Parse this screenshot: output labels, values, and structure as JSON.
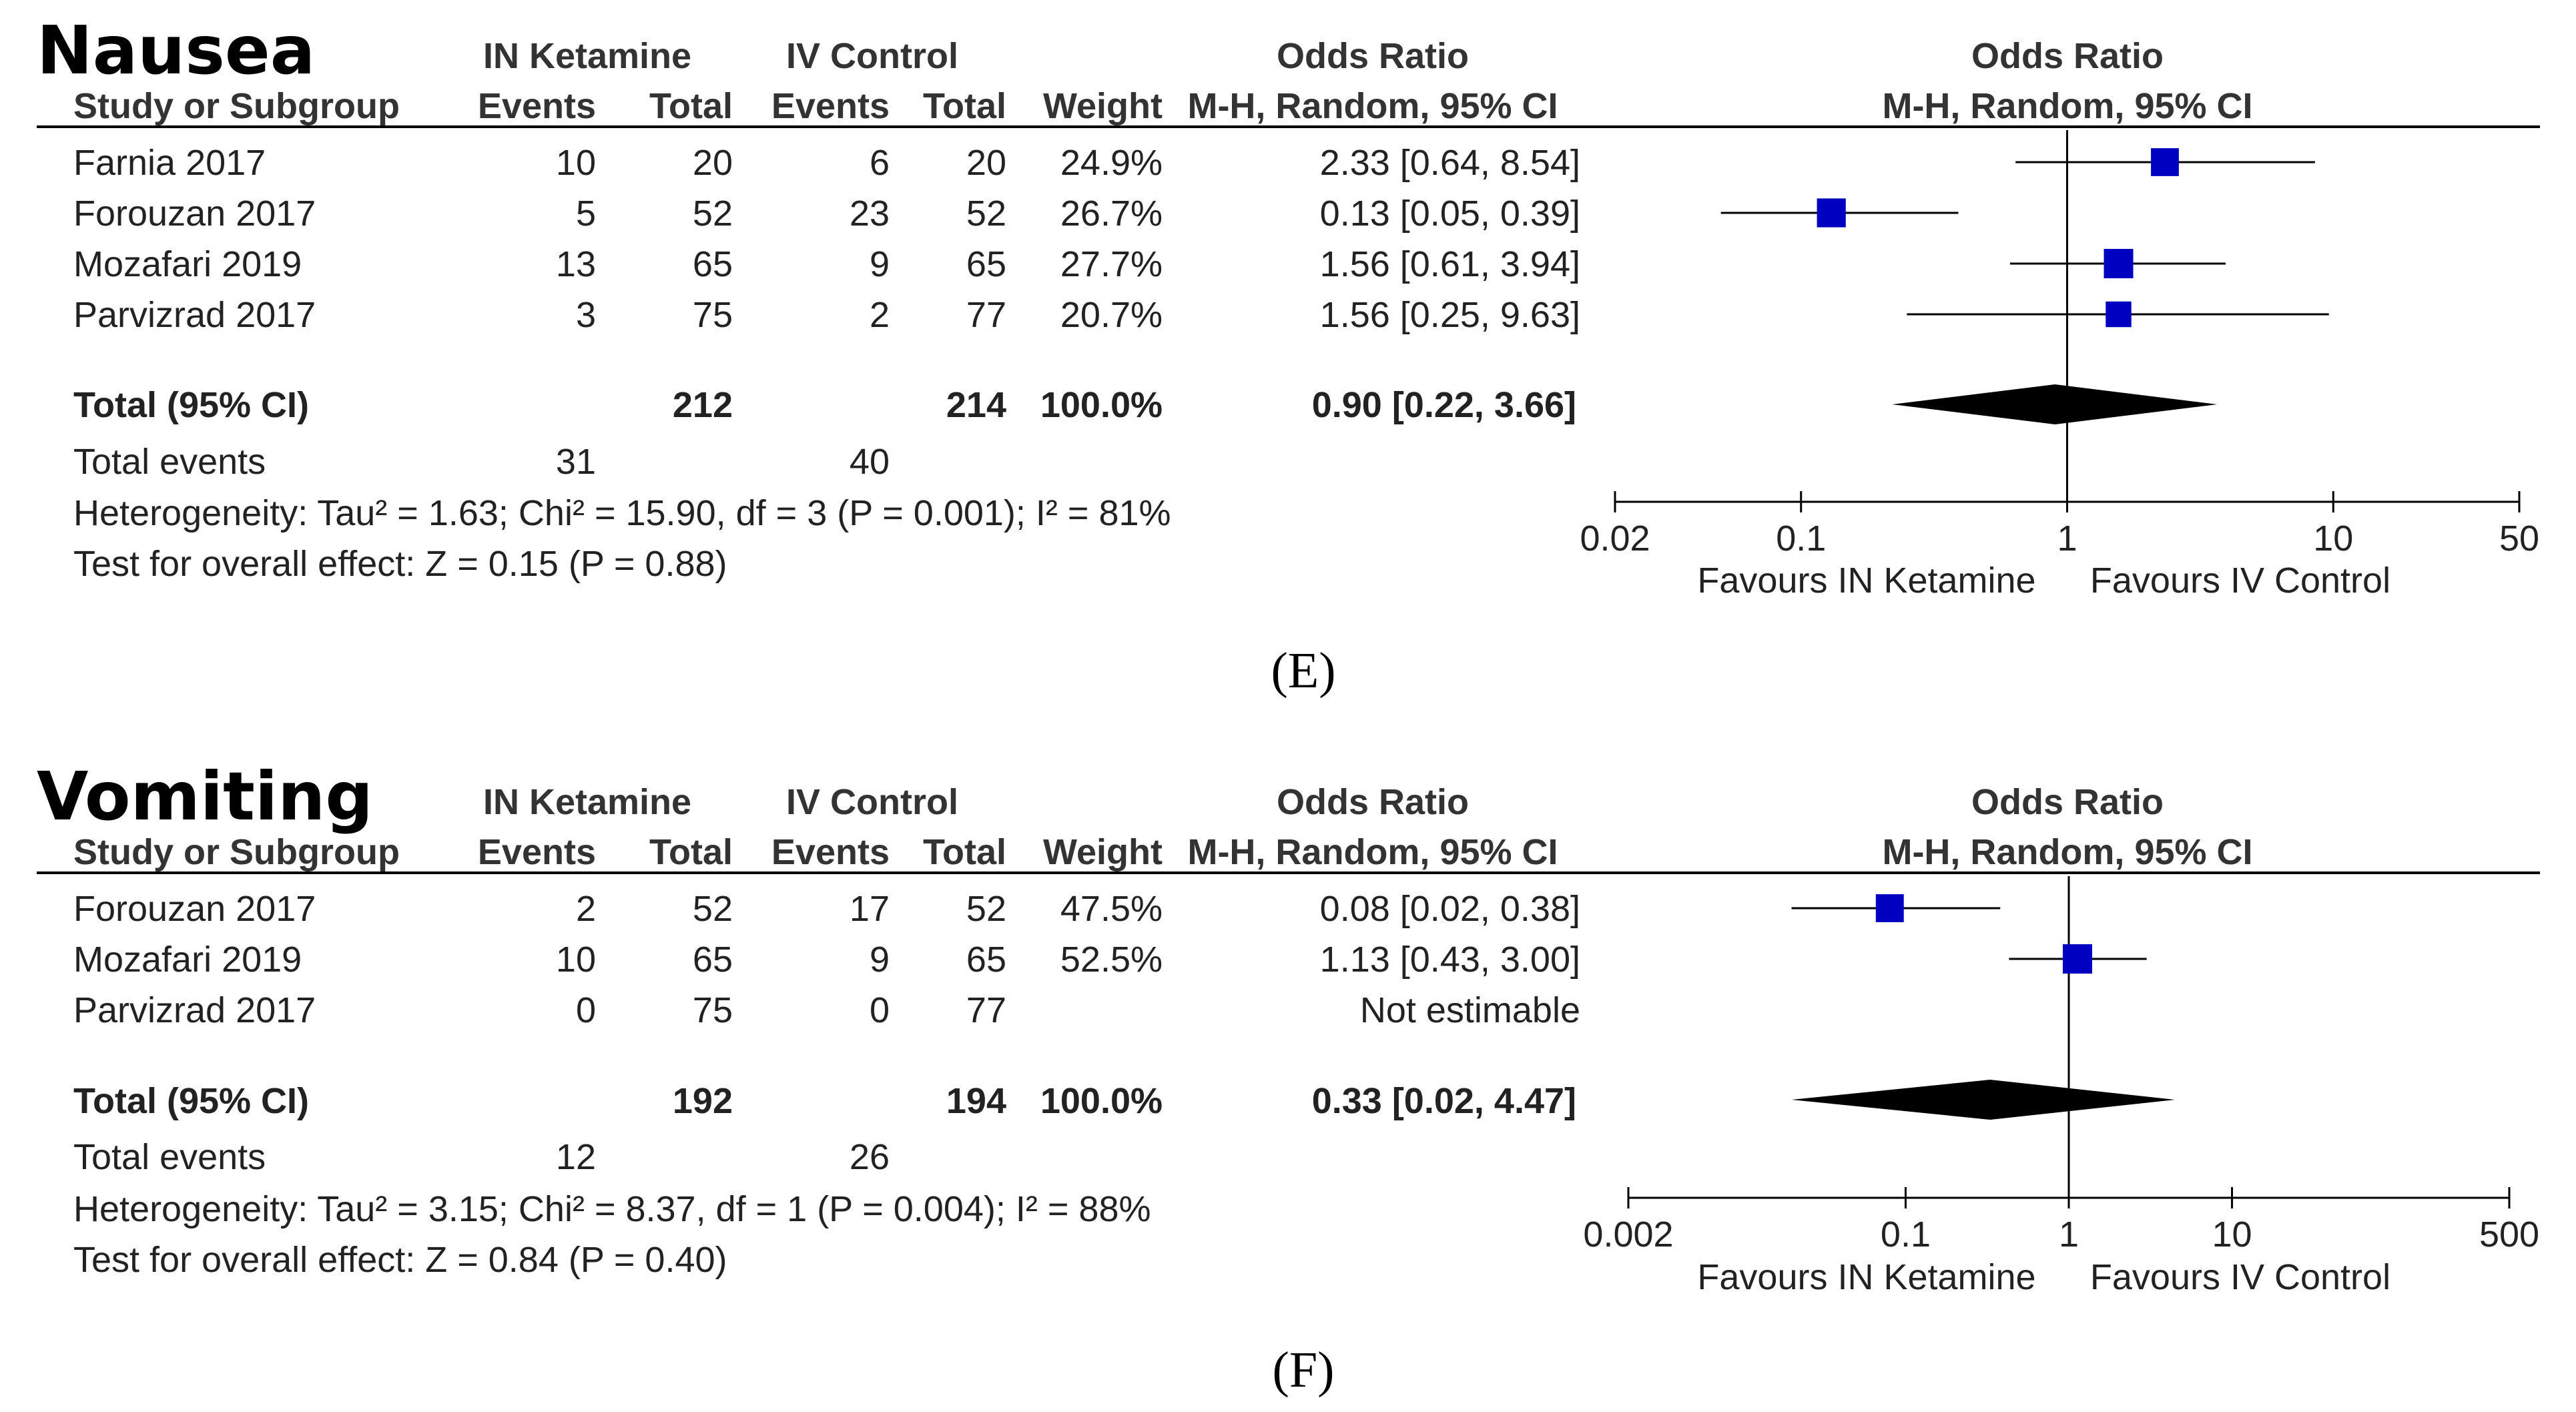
{
  "headers": {
    "group_exp": "IN Ketamine",
    "group_ctl": "IV Control",
    "study": "Study or Subgroup",
    "events": "Events",
    "total": "Total",
    "weight": "Weight",
    "or_title": "Odds Ratio",
    "or_method": "M-H, Random, 95% CI"
  },
  "colors": {
    "box": "#0000c0",
    "diamond": "#000000",
    "line": "#000000"
  },
  "chart_data": [
    {
      "type": "table",
      "title": "Nausea",
      "panel_label": "(E)",
      "rows": [
        {
          "study": "Farnia 2017",
          "exp_events": "10",
          "exp_total": "20",
          "ctl_events": "6",
          "ctl_total": "20",
          "weight": "24.9%",
          "ci_text": "2.33 [0.64, 8.54]",
          "or": 2.33,
          "lo": 0.64,
          "hi": 8.54,
          "w": 24.9
        },
        {
          "study": "Forouzan 2017",
          "exp_events": "5",
          "exp_total": "52",
          "ctl_events": "23",
          "ctl_total": "52",
          "weight": "26.7%",
          "ci_text": "0.13 [0.05, 0.39]",
          "or": 0.13,
          "lo": 0.05,
          "hi": 0.39,
          "w": 26.7
        },
        {
          "study": "Mozafari 2019",
          "exp_events": "13",
          "exp_total": "65",
          "ctl_events": "9",
          "ctl_total": "65",
          "weight": "27.7%",
          "ci_text": "1.56 [0.61, 3.94]",
          "or": 1.56,
          "lo": 0.61,
          "hi": 3.94,
          "w": 27.7
        },
        {
          "study": "Parvizrad 2017",
          "exp_events": "3",
          "exp_total": "75",
          "ctl_events": "2",
          "ctl_total": "77",
          "weight": "20.7%",
          "ci_text": "1.56 [0.25, 9.63]",
          "or": 1.56,
          "lo": 0.25,
          "hi": 9.63,
          "w": 20.7
        }
      ],
      "total": {
        "label": "Total (95% CI)",
        "exp_total": "212",
        "ctl_total": "214",
        "weight": "100.0%",
        "ci_text": "0.90 [0.22, 3.66]",
        "or": 0.9,
        "lo": 0.22,
        "hi": 3.66
      },
      "events": {
        "label": "Total events",
        "exp": "31",
        "ctl": "40"
      },
      "heterogeneity": "Heterogeneity: Tau² = 1.63; Chi² = 15.90, df = 3 (P = 0.001); I² = 81%",
      "overall": "Test for overall effect: Z = 0.15 (P = 0.88)",
      "axis": {
        "scale": "log",
        "range": [
          0.02,
          50
        ],
        "ticks": [
          0.02,
          0.1,
          1,
          10,
          50
        ],
        "tick_labels": [
          "0.02",
          "0.1",
          "1",
          "10",
          "50"
        ]
      },
      "favours_left": "Favours IN Ketamine",
      "favours_right": "Favours IV Control"
    },
    {
      "type": "table",
      "title": "Vomiting",
      "panel_label": "(F)",
      "rows": [
        {
          "study": "Forouzan 2017",
          "exp_events": "2",
          "exp_total": "52",
          "ctl_events": "17",
          "ctl_total": "52",
          "weight": "47.5%",
          "ci_text": "0.08 [0.02, 0.38]",
          "or": 0.08,
          "lo": 0.02,
          "hi": 0.38,
          "w": 47.5
        },
        {
          "study": "Mozafari 2019",
          "exp_events": "10",
          "exp_total": "65",
          "ctl_events": "9",
          "ctl_total": "65",
          "weight": "52.5%",
          "ci_text": "1.13 [0.43, 3.00]",
          "or": 1.13,
          "lo": 0.43,
          "hi": 3.0,
          "w": 52.5
        },
        {
          "study": "Parvizrad 2017",
          "exp_events": "0",
          "exp_total": "75",
          "ctl_events": "0",
          "ctl_total": "77",
          "weight": "",
          "ci_text": "Not estimable",
          "or": null,
          "lo": null,
          "hi": null,
          "w": null
        }
      ],
      "total": {
        "label": "Total (95% CI)",
        "exp_total": "192",
        "ctl_total": "194",
        "weight": "100.0%",
        "ci_text": "0.33 [0.02, 4.47]",
        "or": 0.33,
        "lo": 0.02,
        "hi": 4.47
      },
      "events": {
        "label": "Total events",
        "exp": "12",
        "ctl": "26"
      },
      "heterogeneity": "Heterogeneity: Tau² = 3.15; Chi² = 8.37, df = 1 (P = 0.004); I² = 88%",
      "overall": "Test for overall effect: Z = 0.84 (P = 0.40)",
      "axis": {
        "scale": "log",
        "range": [
          0.002,
          500
        ],
        "ticks": [
          0.002,
          0.1,
          1,
          10,
          500
        ],
        "tick_labels": [
          "0.002",
          "0.1",
          "1",
          "10",
          "500"
        ]
      },
      "favours_left": "Favours IN Ketamine",
      "favours_right": "Favours IV Control"
    }
  ]
}
